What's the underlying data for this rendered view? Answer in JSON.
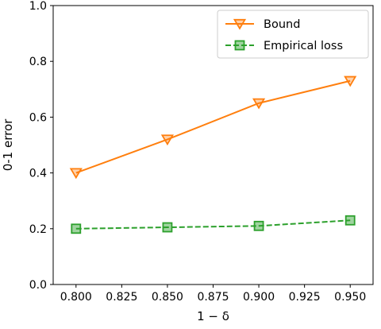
{
  "chart_data": {
    "type": "line",
    "title": "",
    "xlabel": "1 − δ",
    "ylabel": "0-1 error",
    "xlim": [
      0.7875,
      0.9625
    ],
    "ylim": [
      0.0,
      1.0
    ],
    "xticks": [
      0.8,
      0.825,
      0.85,
      0.875,
      0.9,
      0.925,
      0.95
    ],
    "xtick_labels": [
      "0.800",
      "0.825",
      "0.850",
      "0.875",
      "0.900",
      "0.925",
      "0.950"
    ],
    "yticks": [
      0.0,
      0.2,
      0.4,
      0.6,
      0.8,
      1.0
    ],
    "ytick_labels": [
      "0.0",
      "0.2",
      "0.4",
      "0.6",
      "0.8",
      "1.0"
    ],
    "grid": false,
    "legend_position": "top-right",
    "series": [
      {
        "name": "Bound",
        "color": "#ff7f0e",
        "marker": "triangle-down",
        "line_style": "solid",
        "x": [
          0.8,
          0.85,
          0.9,
          0.95
        ],
        "y": [
          0.4,
          0.52,
          0.65,
          0.73
        ]
      },
      {
        "name": "Empirical loss",
        "color": "#2ca02c",
        "marker": "square",
        "line_style": "dashed",
        "x": [
          0.8,
          0.85,
          0.9,
          0.95
        ],
        "y": [
          0.2,
          0.205,
          0.21,
          0.23
        ]
      }
    ]
  }
}
